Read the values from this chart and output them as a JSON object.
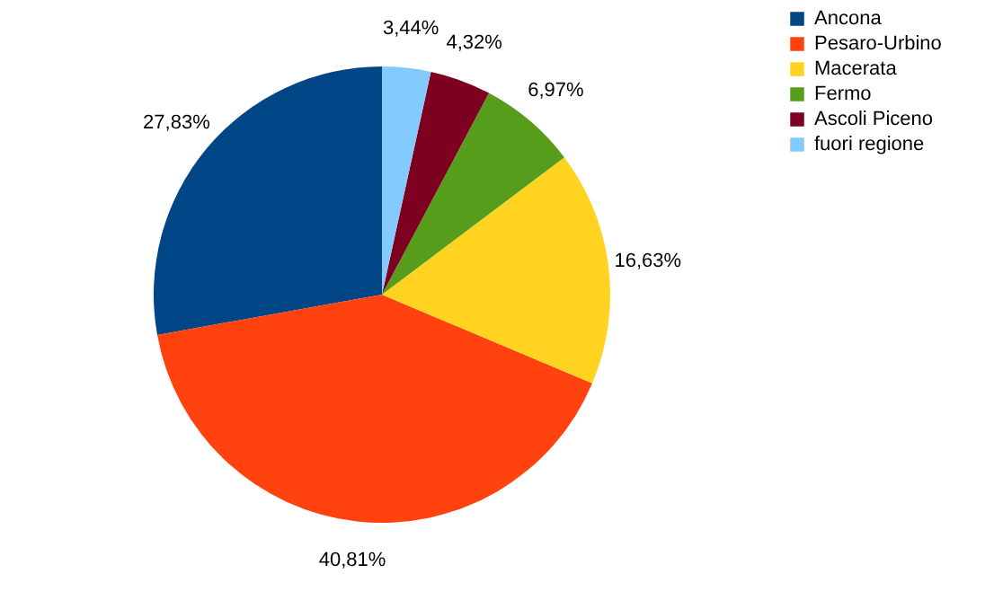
{
  "chart_data": {
    "type": "pie",
    "categories": [
      "Ancona",
      "Pesaro-Urbino",
      "Macerata",
      "Fermo",
      "Ascoli Piceno",
      "fuori regione"
    ],
    "values": [
      27.83,
      40.81,
      16.63,
      6.97,
      4.32,
      3.44
    ],
    "colors": [
      "#004586",
      "#ff420e",
      "#ffd320",
      "#579d1c",
      "#7e0021",
      "#83caff"
    ],
    "value_labels": [
      "27,83%",
      "40,81%",
      "16,63%",
      "6,97%",
      "4,32%",
      "3,44%"
    ],
    "legend": "right"
  }
}
